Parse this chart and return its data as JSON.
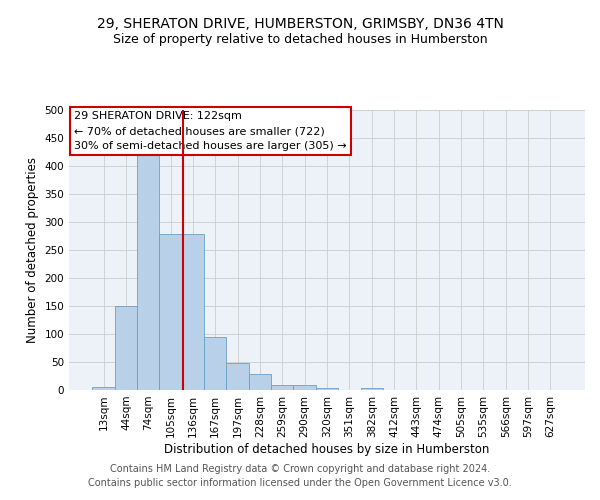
{
  "title": "29, SHERATON DRIVE, HUMBERSTON, GRIMSBY, DN36 4TN",
  "subtitle": "Size of property relative to detached houses in Humberston",
  "xlabel": "Distribution of detached houses by size in Humberston",
  "ylabel": "Number of detached properties",
  "footer_line1": "Contains HM Land Registry data © Crown copyright and database right 2024.",
  "footer_line2": "Contains public sector information licensed under the Open Government Licence v3.0.",
  "bar_labels": [
    "13sqm",
    "44sqm",
    "74sqm",
    "105sqm",
    "136sqm",
    "167sqm",
    "197sqm",
    "228sqm",
    "259sqm",
    "290sqm",
    "320sqm",
    "351sqm",
    "382sqm",
    "412sqm",
    "443sqm",
    "474sqm",
    "505sqm",
    "535sqm",
    "566sqm",
    "597sqm",
    "627sqm"
  ],
  "bar_values": [
    5,
    150,
    420,
    278,
    278,
    95,
    48,
    29,
    9,
    9,
    4,
    0,
    4,
    0,
    0,
    0,
    0,
    0,
    0,
    0,
    0
  ],
  "bar_color": "#b8d0e8",
  "bar_edge_color": "#6aa0c8",
  "property_line_label": "29 SHERATON DRIVE: 122sqm",
  "annotation_line1": "← 70% of detached houses are smaller (722)",
  "annotation_line2": "30% of semi-detached houses are larger (305) →",
  "annotation_box_color": "#ffffff",
  "annotation_box_edge_color": "#cc0000",
  "vline_color": "#cc0000",
  "vline_x_index": 3.55,
  "ylim": [
    0,
    500
  ],
  "yticks": [
    0,
    50,
    100,
    150,
    200,
    250,
    300,
    350,
    400,
    450,
    500
  ],
  "grid_color": "#cccccc",
  "bg_color": "#edf2f8",
  "title_fontsize": 10,
  "subtitle_fontsize": 9,
  "xlabel_fontsize": 8.5,
  "ylabel_fontsize": 8.5,
  "tick_fontsize": 7.5,
  "annotation_fontsize": 8,
  "footer_fontsize": 7
}
